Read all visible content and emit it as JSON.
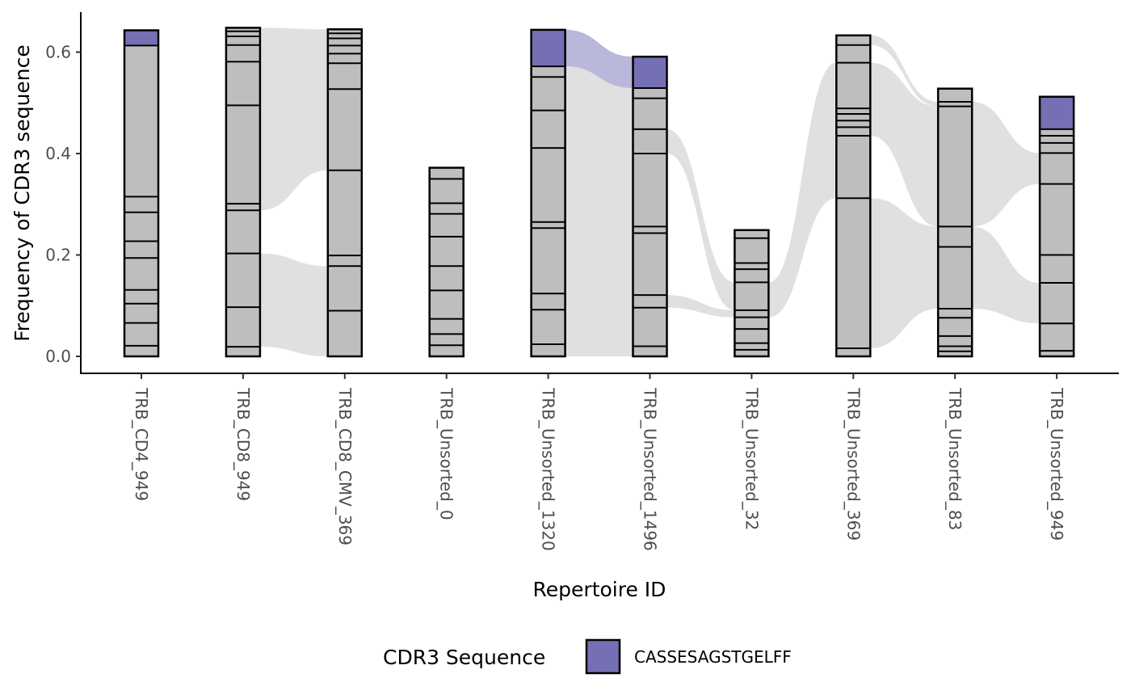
{
  "chart_data": {
    "type": "bar",
    "subtype": "stacked-alluvial",
    "xlabel": "Repertoire ID",
    "ylabel": "Frequency of CDR3 sequence",
    "ylim": [
      0,
      0.68
    ],
    "yticks": [
      "0.0",
      "0.2",
      "0.4",
      "0.6"
    ],
    "ytick_values": [
      0,
      0.2,
      0.4,
      0.6
    ],
    "grid": false,
    "legend": {
      "title": "CDR3 Sequence",
      "placement": "bottom",
      "entries": [
        {
          "label": "CASSESAGSTGELFF",
          "color": "#7570b3"
        }
      ]
    },
    "colors": {
      "highlight": "#7570b3",
      "highlight_flow": "#b9b7db",
      "segment": "#bebebe",
      "flow": "#e0e0e0",
      "stroke": "#000000"
    },
    "categories": [
      "TRB_CD4_949",
      "TRB_CD8_949",
      "TRB_CD8_CMV_369",
      "TRB_Unsorted_0",
      "TRB_Unsorted_1320",
      "TRB_Unsorted_1496",
      "TRB_Unsorted_32",
      "TRB_Unsorted_369",
      "TRB_Unsorted_83",
      "TRB_Unsorted_949"
    ],
    "bars": [
      {
        "total": 0.643,
        "highlight": [
          0.613,
          0.643
        ],
        "boundaries": [
          0.021,
          0.066,
          0.104,
          0.131,
          0.194,
          0.227,
          0.284,
          0.315,
          0.613
        ]
      },
      {
        "total": 0.648,
        "highlight": null,
        "boundaries": [
          0.019,
          0.097,
          0.203,
          0.288,
          0.301,
          0.495,
          0.581,
          0.614,
          0.631,
          0.641
        ]
      },
      {
        "total": 0.645,
        "highlight": null,
        "boundaries": [
          0.09,
          0.178,
          0.199,
          0.367,
          0.527,
          0.578,
          0.597,
          0.613,
          0.627,
          0.637
        ]
      },
      {
        "total": 0.372,
        "highlight": null,
        "boundaries": [
          0.022,
          0.044,
          0.074,
          0.13,
          0.178,
          0.236,
          0.281,
          0.302,
          0.35
        ]
      },
      {
        "total": 0.644,
        "highlight": [
          0.572,
          0.644
        ],
        "boundaries": [
          0.024,
          0.092,
          0.124,
          0.253,
          0.265,
          0.411,
          0.485,
          0.551,
          0.572
        ]
      },
      {
        "total": 0.591,
        "highlight": [
          0.529,
          0.591
        ],
        "boundaries": [
          0.02,
          0.096,
          0.121,
          0.243,
          0.256,
          0.4,
          0.448,
          0.509,
          0.529
        ]
      },
      {
        "total": 0.249,
        "highlight": null,
        "boundaries": [
          0.013,
          0.026,
          0.054,
          0.077,
          0.091,
          0.146,
          0.172,
          0.184,
          0.233
        ]
      },
      {
        "total": 0.633,
        "highlight": null,
        "boundaries": [
          0.016,
          0.312,
          0.435,
          0.452,
          0.465,
          0.478,
          0.489,
          0.579,
          0.614
        ]
      },
      {
        "total": 0.528,
        "highlight": null,
        "boundaries": [
          0.01,
          0.02,
          0.04,
          0.076,
          0.094,
          0.216,
          0.256,
          0.493,
          0.502
        ]
      },
      {
        "total": 0.512,
        "highlight": [
          0.448,
          0.512
        ],
        "boundaries": [
          0.011,
          0.065,
          0.145,
          0.2,
          0.34,
          0.401,
          0.421,
          0.435,
          0.448
        ]
      }
    ],
    "flows": [
      {
        "from": 1,
        "to": 2,
        "from_range": [
          0.019,
          0.203
        ],
        "to_range": [
          0.0,
          0.178
        ],
        "highlight": false
      },
      {
        "from": 1,
        "to": 2,
        "from_range": [
          0.288,
          0.648
        ],
        "to_range": [
          0.367,
          0.645
        ],
        "highlight": false
      },
      {
        "from": 4,
        "to": 5,
        "from_range": [
          0.0,
          0.572
        ],
        "to_range": [
          0.0,
          0.529
        ],
        "highlight": false
      },
      {
        "from": 4,
        "to": 5,
        "from_range": [
          0.572,
          0.644
        ],
        "to_range": [
          0.529,
          0.591
        ],
        "highlight": true
      },
      {
        "from": 5,
        "to": 6,
        "from_range": [
          0.096,
          0.121
        ],
        "to_range": [
          0.077,
          0.091
        ],
        "highlight": false
      },
      {
        "from": 5,
        "to": 6,
        "from_range": [
          0.4,
          0.448
        ],
        "to_range": [
          0.091,
          0.146
        ],
        "highlight": false
      },
      {
        "from": 6,
        "to": 7,
        "from_range": [
          0.077,
          0.146
        ],
        "to_range": [
          0.312,
          0.579
        ],
        "highlight": false
      },
      {
        "from": 7,
        "to": 8,
        "from_range": [
          0.016,
          0.312
        ],
        "to_range": [
          0.094,
          0.256
        ],
        "highlight": false
      },
      {
        "from": 7,
        "to": 8,
        "from_range": [
          0.435,
          0.579
        ],
        "to_range": [
          0.256,
          0.493
        ],
        "highlight": false
      },
      {
        "from": 7,
        "to": 8,
        "from_range": [
          0.614,
          0.633
        ],
        "to_range": [
          0.493,
          0.502
        ],
        "highlight": false
      },
      {
        "from": 8,
        "to": 9,
        "from_range": [
          0.094,
          0.256
        ],
        "to_range": [
          0.065,
          0.145
        ],
        "highlight": false
      },
      {
        "from": 8,
        "to": 9,
        "from_range": [
          0.256,
          0.502
        ],
        "to_range": [
          0.34,
          0.401
        ],
        "highlight": false
      }
    ]
  }
}
